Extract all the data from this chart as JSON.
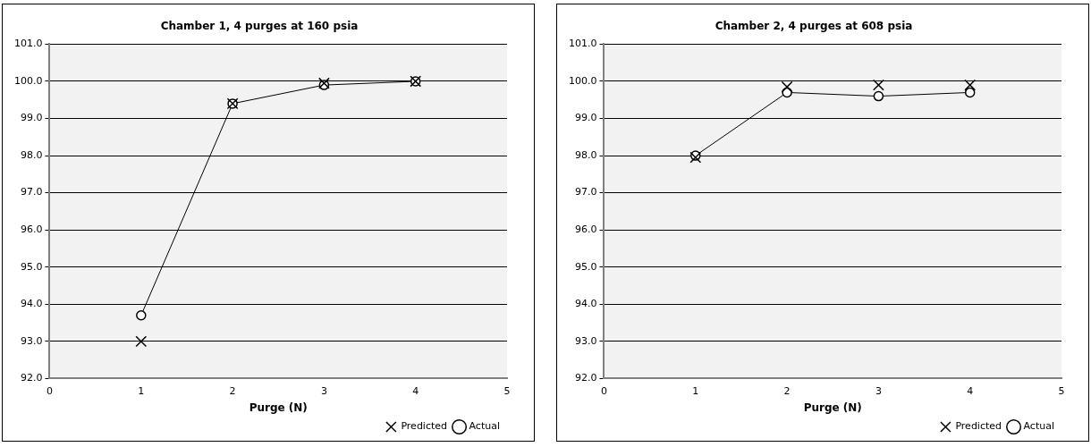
{
  "chart_data": [
    {
      "type": "line",
      "title": "Chamber 1, 4 purges at 160 psia",
      "xlabel": "Purge (N)",
      "xlim": [
        0,
        5
      ],
      "xticks": [
        0,
        1,
        2,
        3,
        4,
        5
      ],
      "ylim": [
        92.0,
        101.0
      ],
      "yticks": [
        {
          "value": 92,
          "label": "92.0"
        },
        {
          "value": 93,
          "label": "93.0"
        },
        {
          "value": 94,
          "label": "94.0"
        },
        {
          "value": 95,
          "label": "95.0"
        },
        {
          "value": 96,
          "label": "96.0"
        },
        {
          "value": 97,
          "label": "97.0"
        },
        {
          "value": 98,
          "label": "98.0"
        },
        {
          "value": 99,
          "label": "99.0"
        },
        {
          "value": 100,
          "label": "100.0"
        },
        {
          "value": 101,
          "label": "101.0"
        }
      ],
      "grid": "y",
      "legend": "bottom right",
      "series": [
        {
          "name": "Actual",
          "marker": "circle",
          "color": "#000000",
          "x": [
            1,
            2,
            3,
            4
          ],
          "values": [
            93.7,
            99.4,
            99.9,
            100.0
          ]
        },
        {
          "name": "Predicted",
          "type": "scatter",
          "marker": "cross",
          "color": "#000000",
          "x": [
            1,
            2,
            3,
            4
          ],
          "values": [
            93.0,
            99.4,
            99.95,
            100.0
          ]
        }
      ]
    },
    {
      "type": "line",
      "title": "Chamber 2, 4 purges at 608 psia",
      "xlabel": "Purge (N)",
      "xlim": [
        0,
        5
      ],
      "xticks": [
        0,
        1,
        2,
        3,
        4,
        5
      ],
      "ylim": [
        92.0,
        101.0
      ],
      "yticks": [
        {
          "value": 92,
          "label": "92.0"
        },
        {
          "value": 93,
          "label": "93.0"
        },
        {
          "value": 94,
          "label": "94.0"
        },
        {
          "value": 95,
          "label": "95.0"
        },
        {
          "value": 96,
          "label": "96.0"
        },
        {
          "value": 97,
          "label": "97.0"
        },
        {
          "value": 98,
          "label": "98.0"
        },
        {
          "value": 99,
          "label": "99.0"
        },
        {
          "value": 100,
          "label": "100.0"
        },
        {
          "value": 101,
          "label": "101.0"
        }
      ],
      "grid": "y",
      "legend": "bottom right",
      "series": [
        {
          "name": "Actual",
          "marker": "circle",
          "color": "#000000",
          "x": [
            1,
            2,
            3,
            4
          ],
          "values": [
            98.0,
            99.7,
            99.6,
            99.7
          ]
        },
        {
          "name": "Predicted",
          "type": "scatter",
          "marker": "cross",
          "color": "#000000",
          "x": [
            1,
            2,
            3,
            4
          ],
          "values": [
            97.95,
            99.85,
            99.9,
            99.9
          ]
        }
      ]
    }
  ]
}
